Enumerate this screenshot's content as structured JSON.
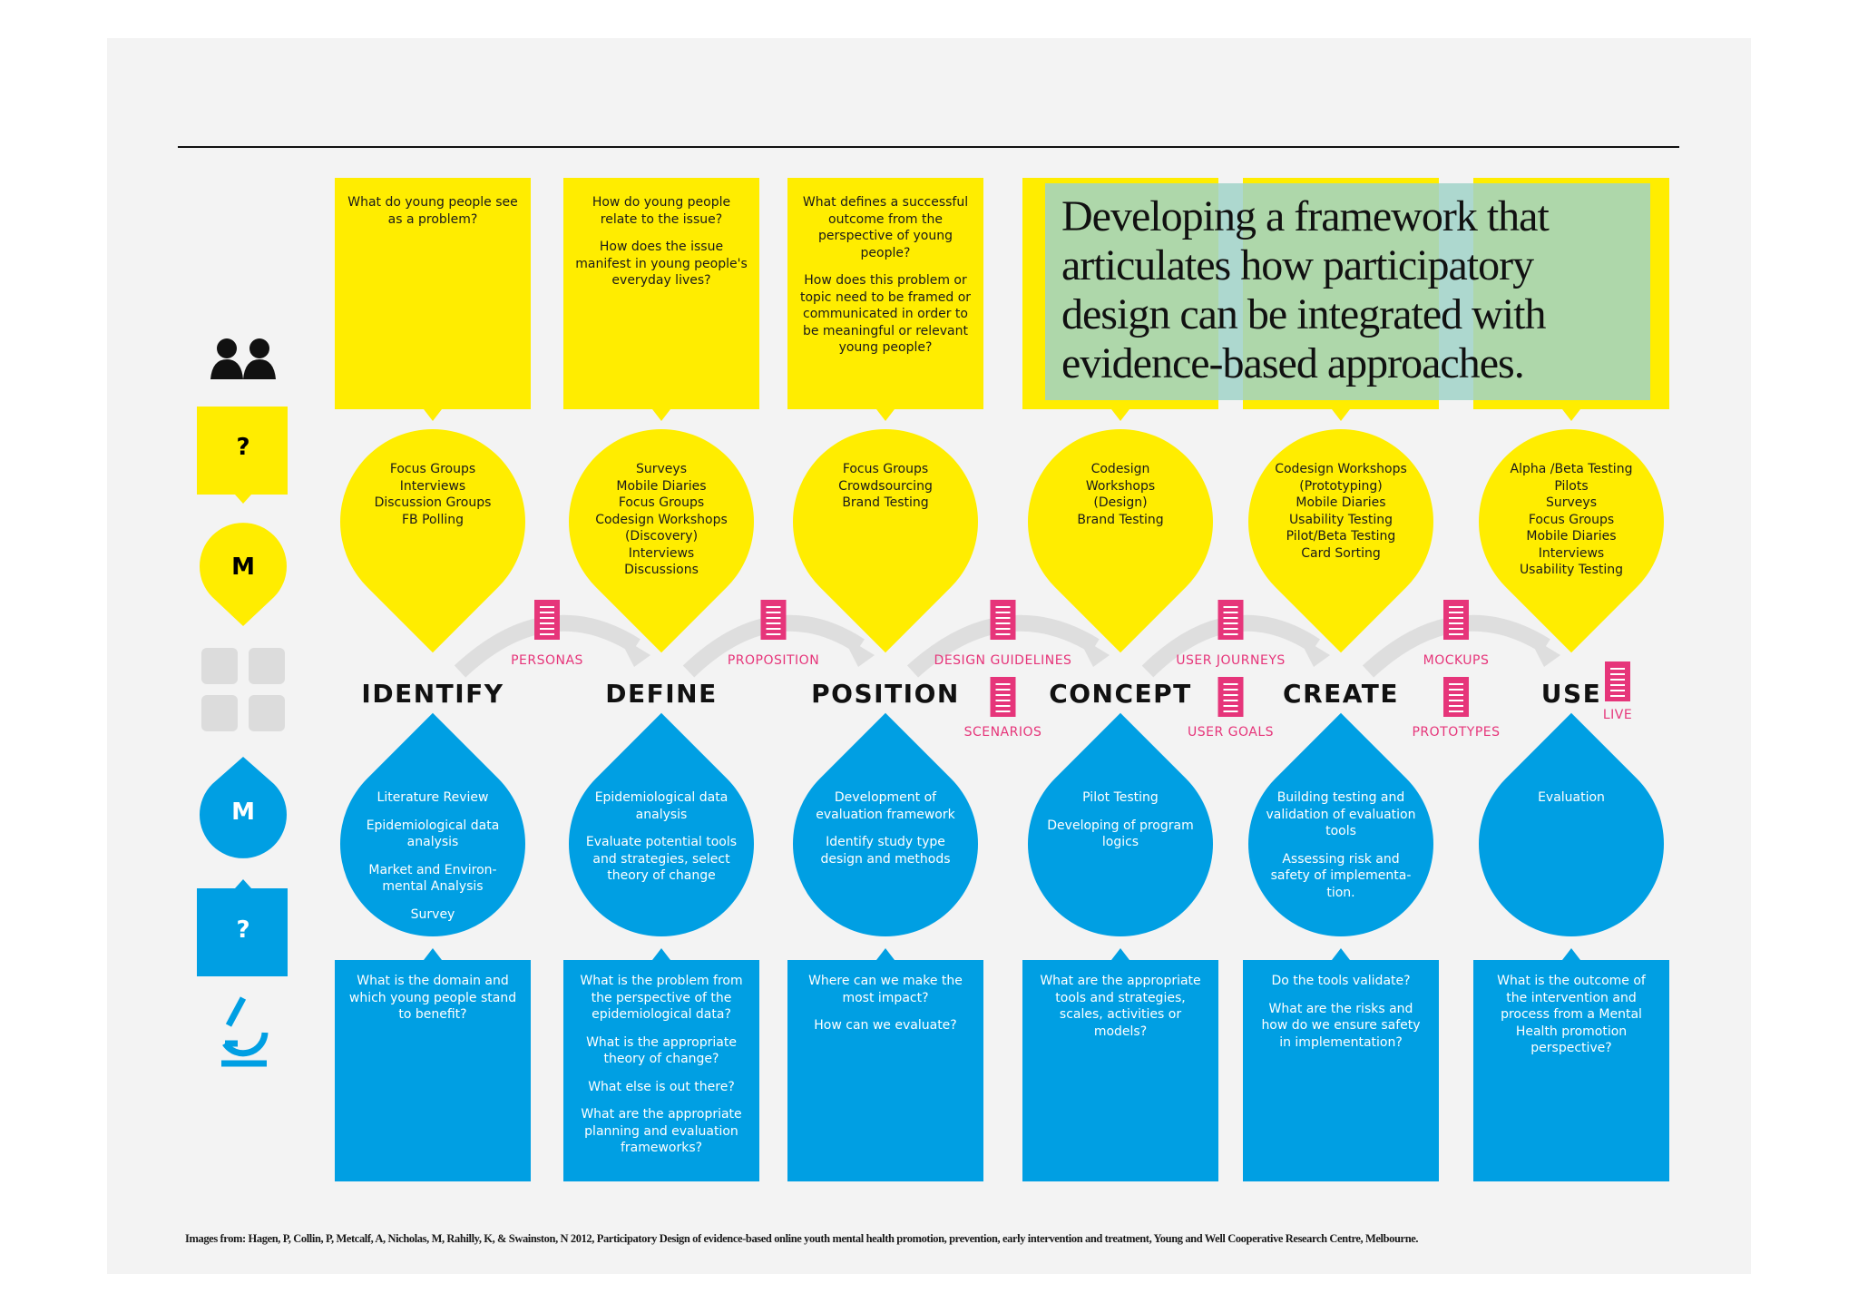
{
  "title": "Developing a framework that articulates how participatory design can be integrated with evidence-based approaches.",
  "sidebar": {
    "question_top": "?",
    "methods_top": "M",
    "methods_bottom": "M",
    "question_bottom": "?"
  },
  "columns": [
    {
      "stage": "IDENTIFY",
      "questions_top": [
        "What do young people see as a problem?"
      ],
      "methods": [
        "Focus Groups",
        "Interviews",
        "Discussion Groups",
        "FB Polling"
      ],
      "research": [
        "Literature Review",
        "Epidemiological data analysis",
        "Market and Environ-mental Analysis",
        "Survey"
      ],
      "questions_bottom": [
        "What is the domain and which young people stand to benefit?"
      ]
    },
    {
      "stage": "DEFINE",
      "questions_top": [
        "How do young people relate to the issue?",
        "How does the issue manifest in young people's everyday lives?"
      ],
      "methods": [
        "Surveys",
        "Mobile Diaries",
        "Focus Groups",
        "Codesign Workshops",
        "(Discovery)",
        "Interviews",
        "Discussions"
      ],
      "research": [
        "Epidemiological data analysis",
        "Evaluate potential tools and strategies, select theory of change"
      ],
      "questions_bottom": [
        "What is the problem from the perspective of the epidemiological data?",
        "What is the appropriate theory of change?",
        "What else is out there?",
        "What are the appropriate planning and evaluation frameworks?"
      ]
    },
    {
      "stage": "POSITION",
      "questions_top": [
        "What defines a successful outcome from the perspective of young people?",
        "How does this problem or topic need to be framed or communicated in order to be meaningful or relevant young people?"
      ],
      "methods": [
        "Focus Groups",
        "Crowdsourcing",
        "Brand Testing"
      ],
      "research": [
        "Development of evaluation framework",
        "Identify study type design and methods"
      ],
      "questions_bottom": [
        "Where can we make the most impact?",
        "How can we evaluate?"
      ]
    },
    {
      "stage": "CONCEPT",
      "methods": [
        "Codesign",
        "Workshops",
        "(Design)",
        "Brand Testing"
      ],
      "research": [
        "Pilot Testing",
        "Developing of program logics"
      ],
      "questions_bottom": [
        "What are the appropriate tools and strategies, scales, activities or models?"
      ]
    },
    {
      "stage": "CREATE",
      "methods": [
        "Codesign Workshops",
        "(Prototyping)",
        "Mobile Diaries",
        "Usability Testing",
        "Pilot/Beta Testing",
        "Card Sorting"
      ],
      "research": [
        "Building testing and validation of evaluation tools",
        "Assessing risk and safety of implementa-tion."
      ],
      "questions_bottom": [
        "Do the tools validate?",
        "What are the risks and how do we ensure safety in implementation?"
      ]
    },
    {
      "stage": "USE",
      "methods": [
        "Alpha /Beta Testing",
        "Pilots",
        "Surveys",
        "Focus Groups",
        "Mobile Diaries",
        "Interviews",
        "Usability Testing"
      ],
      "research": [
        "Evaluation"
      ],
      "questions_bottom": [
        "What is the outcome of the intervention and process from a Mental Health promotion perspective?"
      ]
    }
  ],
  "connectors": [
    {
      "top": "PERSONAS"
    },
    {
      "top": "PROPOSITION"
    },
    {
      "top": "DESIGN GUIDELINES",
      "bottom": "SCENARIOS"
    },
    {
      "top": "USER JOURNEYS",
      "bottom": "USER GOALS"
    },
    {
      "top": "MOCKUPS",
      "bottom": "PROTOTYPES"
    }
  ],
  "live_label": "LIVE",
  "citation": "Images from: Hagen, P, Collin, P, Metcalf, A, Nicholas, M, Rahilly, K, & Swainston, N 2012, Participatory Design of evidence-based online youth mental health promotion, prevention, early intervention and treatment, Young and Well Cooperative Research Centre, Melbourne."
}
